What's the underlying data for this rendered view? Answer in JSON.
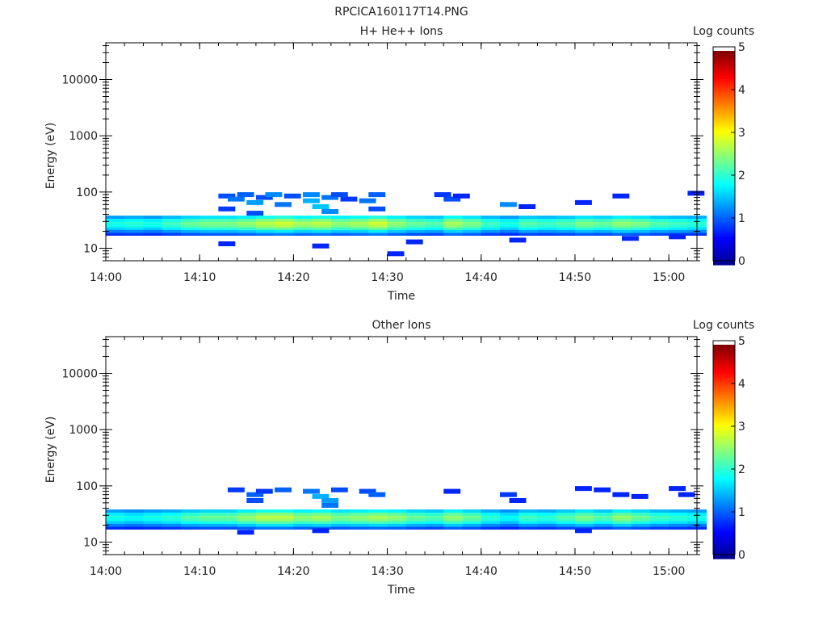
{
  "figure": {
    "title": "RPCICA160117T14.PNG",
    "colorscale": [
      "#00008f",
      "#0000ff",
      "#0080ff",
      "#00ffff",
      "#80ff80",
      "#ffff00",
      "#ff8000",
      "#ff0000",
      "#800000"
    ]
  },
  "chart_data": [
    {
      "type": "heatmap",
      "title": "H+ He++ Ions",
      "xlabel": "Time",
      "ylabel": "Energy (eV)",
      "y_scale": "log",
      "xlim": [
        "14:00",
        "15:03"
      ],
      "ylim": [
        6,
        45000
      ],
      "x_ticks": [
        "14:00",
        "14:10",
        "14:20",
        "14:30",
        "14:40",
        "14:50",
        "15:00"
      ],
      "y_ticks": [
        "10",
        "100",
        "1000",
        "10000"
      ],
      "colorbar": {
        "label": "Log counts",
        "range": [
          0,
          5
        ],
        "ticks": [
          "0",
          "1",
          "2",
          "3",
          "4",
          "5"
        ]
      },
      "band": {
        "t": [
          "14:00",
          "14:02",
          "14:04",
          "14:06",
          "14:08",
          "14:10",
          "14:12",
          "14:14",
          "14:16",
          "14:18",
          "14:20",
          "14:22",
          "14:24",
          "14:26",
          "14:28",
          "14:30",
          "14:32",
          "14:34",
          "14:36",
          "14:38",
          "14:40",
          "14:42",
          "14:44",
          "14:46",
          "14:48",
          "14:50",
          "14:52",
          "14:54",
          "14:56",
          "14:58",
          "15:00",
          "15:02"
        ],
        "peak_log_counts": [
          2.0,
          2.1,
          2.0,
          2.2,
          2.4,
          2.5,
          2.5,
          2.6,
          2.8,
          2.9,
          2.7,
          2.8,
          2.6,
          2.7,
          2.9,
          2.6,
          2.4,
          2.3,
          2.7,
          2.5,
          2.2,
          2.0,
          2.3,
          2.2,
          2.3,
          2.5,
          2.4,
          2.6,
          2.5,
          2.3,
          2.2,
          2.1
        ]
      },
      "sparse_counts": [
        {
          "t": "14:12",
          "energy_ev": 50,
          "log_counts": 0.9
        },
        {
          "t": "14:12",
          "energy_ev": 85,
          "log_counts": 1.0
        },
        {
          "t": "14:13",
          "energy_ev": 75,
          "log_counts": 1.2
        },
        {
          "t": "14:14",
          "energy_ev": 90,
          "log_counts": 1.1
        },
        {
          "t": "14:15",
          "energy_ev": 65,
          "log_counts": 1.4
        },
        {
          "t": "14:15",
          "energy_ev": 42,
          "log_counts": 1.0
        },
        {
          "t": "14:16",
          "energy_ev": 80,
          "log_counts": 1.0
        },
        {
          "t": "14:17",
          "energy_ev": 90,
          "log_counts": 1.3
        },
        {
          "t": "14:18",
          "energy_ev": 60,
          "log_counts": 1.2
        },
        {
          "t": "14:19",
          "energy_ev": 85,
          "log_counts": 1.0
        },
        {
          "t": "14:21",
          "energy_ev": 90,
          "log_counts": 1.3
        },
        {
          "t": "14:21",
          "energy_ev": 70,
          "log_counts": 1.5
        },
        {
          "t": "14:22",
          "energy_ev": 55,
          "log_counts": 1.6
        },
        {
          "t": "14:23",
          "energy_ev": 80,
          "log_counts": 1.2
        },
        {
          "t": "14:23",
          "energy_ev": 45,
          "log_counts": 1.3
        },
        {
          "t": "14:24",
          "energy_ev": 90,
          "log_counts": 1.0
        },
        {
          "t": "14:25",
          "energy_ev": 75,
          "log_counts": 0.9
        },
        {
          "t": "14:27",
          "energy_ev": 70,
          "log_counts": 1.2
        },
        {
          "t": "14:28",
          "energy_ev": 90,
          "log_counts": 1.1
        },
        {
          "t": "14:28",
          "energy_ev": 50,
          "log_counts": 1.0
        },
        {
          "t": "14:12",
          "energy_ev": 12,
          "log_counts": 0.8
        },
        {
          "t": "14:22",
          "energy_ev": 11,
          "log_counts": 0.8
        },
        {
          "t": "14:30",
          "energy_ev": 8,
          "log_counts": 0.8
        },
        {
          "t": "14:32",
          "energy_ev": 13,
          "log_counts": 0.8
        },
        {
          "t": "14:35",
          "energy_ev": 90,
          "log_counts": 0.9
        },
        {
          "t": "14:36",
          "energy_ev": 75,
          "log_counts": 1.0
        },
        {
          "t": "14:37",
          "energy_ev": 85,
          "log_counts": 0.8
        },
        {
          "t": "14:42",
          "energy_ev": 60,
          "log_counts": 1.3
        },
        {
          "t": "14:44",
          "energy_ev": 55,
          "log_counts": 0.8
        },
        {
          "t": "14:43",
          "energy_ev": 14,
          "log_counts": 0.8
        },
        {
          "t": "14:50",
          "energy_ev": 65,
          "log_counts": 0.8
        },
        {
          "t": "14:54",
          "energy_ev": 85,
          "log_counts": 0.8
        },
        {
          "t": "14:55",
          "energy_ev": 15,
          "log_counts": 0.8
        },
        {
          "t": "15:00",
          "energy_ev": 16,
          "log_counts": 0.8
        },
        {
          "t": "15:02",
          "energy_ev": 95,
          "log_counts": 0.8
        }
      ]
    },
    {
      "type": "heatmap",
      "title": "Other Ions",
      "xlabel": "Time",
      "ylabel": "Energy (eV)",
      "y_scale": "log",
      "xlim": [
        "14:00",
        "15:03"
      ],
      "ylim": [
        6,
        45000
      ],
      "x_ticks": [
        "14:00",
        "14:10",
        "14:20",
        "14:30",
        "14:40",
        "14:50",
        "15:00"
      ],
      "y_ticks": [
        "10",
        "100",
        "1000",
        "10000"
      ],
      "colorbar": {
        "label": "Log counts",
        "range": [
          0,
          5
        ],
        "ticks": [
          "0",
          "1",
          "2",
          "3",
          "4",
          "5"
        ]
      },
      "band": {
        "t": [
          "14:00",
          "14:02",
          "14:04",
          "14:06",
          "14:08",
          "14:10",
          "14:12",
          "14:14",
          "14:16",
          "14:18",
          "14:20",
          "14:22",
          "14:24",
          "14:26",
          "14:28",
          "14:30",
          "14:32",
          "14:34",
          "14:36",
          "14:38",
          "14:40",
          "14:42",
          "14:44",
          "14:46",
          "14:48",
          "14:50",
          "14:52",
          "14:54",
          "14:56",
          "14:58",
          "15:00",
          "15:02"
        ],
        "peak_log_counts": [
          2.0,
          1.9,
          2.0,
          2.1,
          2.3,
          2.4,
          2.4,
          2.6,
          2.8,
          2.8,
          2.6,
          2.7,
          2.5,
          2.6,
          2.7,
          2.6,
          2.4,
          2.3,
          2.6,
          2.4,
          2.1,
          1.9,
          2.2,
          2.1,
          2.3,
          2.5,
          2.3,
          2.6,
          2.4,
          2.2,
          2.1,
          2.0
        ]
      },
      "sparse_counts": [
        {
          "t": "14:13",
          "energy_ev": 85,
          "log_counts": 0.9
        },
        {
          "t": "14:15",
          "energy_ev": 70,
          "log_counts": 1.1
        },
        {
          "t": "14:15",
          "energy_ev": 55,
          "log_counts": 1.0
        },
        {
          "t": "14:16",
          "energy_ev": 80,
          "log_counts": 0.9
        },
        {
          "t": "14:18",
          "energy_ev": 85,
          "log_counts": 1.1
        },
        {
          "t": "14:21",
          "energy_ev": 80,
          "log_counts": 1.2
        },
        {
          "t": "14:22",
          "energy_ev": 65,
          "log_counts": 1.5
        },
        {
          "t": "14:23",
          "energy_ev": 55,
          "log_counts": 1.4
        },
        {
          "t": "14:23",
          "energy_ev": 45,
          "log_counts": 1.2
        },
        {
          "t": "14:24",
          "energy_ev": 85,
          "log_counts": 1.0
        },
        {
          "t": "14:27",
          "energy_ev": 80,
          "log_counts": 1.0
        },
        {
          "t": "14:28",
          "energy_ev": 70,
          "log_counts": 1.1
        },
        {
          "t": "14:22",
          "energy_ev": 16,
          "log_counts": 0.8
        },
        {
          "t": "14:14",
          "energy_ev": 15,
          "log_counts": 0.8
        },
        {
          "t": "14:36",
          "energy_ev": 80,
          "log_counts": 0.8
        },
        {
          "t": "14:42",
          "energy_ev": 70,
          "log_counts": 0.9
        },
        {
          "t": "14:43",
          "energy_ev": 55,
          "log_counts": 0.8
        },
        {
          "t": "14:50",
          "energy_ev": 90,
          "log_counts": 0.8
        },
        {
          "t": "14:52",
          "energy_ev": 85,
          "log_counts": 0.8
        },
        {
          "t": "14:54",
          "energy_ev": 70,
          "log_counts": 0.8
        },
        {
          "t": "14:56",
          "energy_ev": 65,
          "log_counts": 0.8
        },
        {
          "t": "15:00",
          "energy_ev": 90,
          "log_counts": 0.8
        },
        {
          "t": "15:01",
          "energy_ev": 70,
          "log_counts": 0.8
        },
        {
          "t": "14:50",
          "energy_ev": 16,
          "log_counts": 0.8
        }
      ]
    }
  ]
}
